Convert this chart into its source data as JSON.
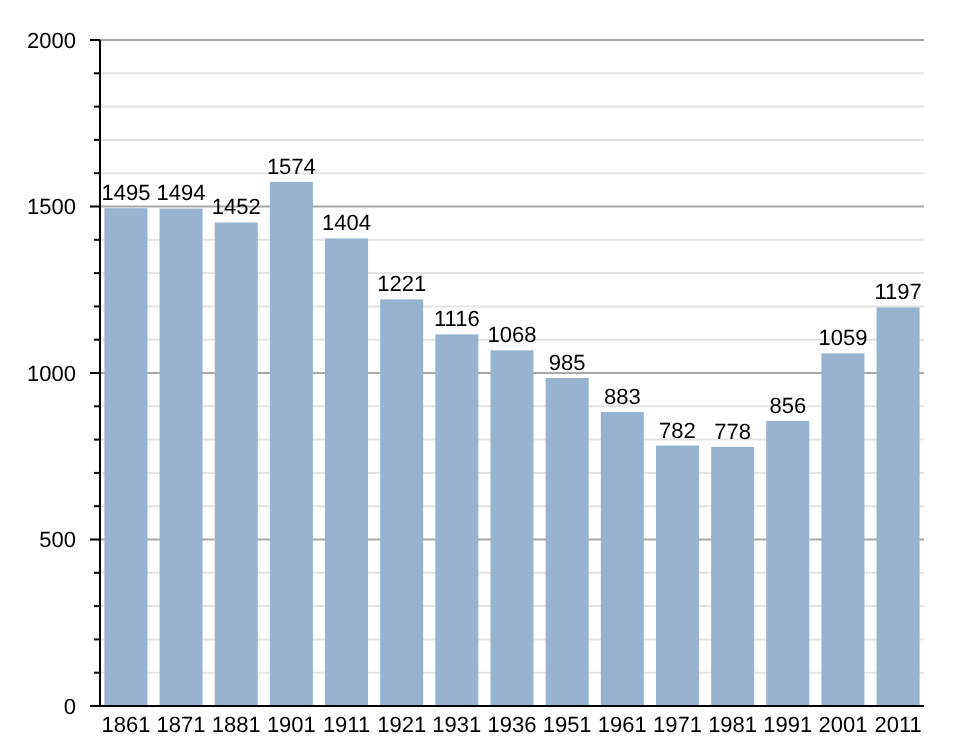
{
  "chart_data": {
    "type": "bar",
    "categories": [
      "1861",
      "1871",
      "1881",
      "1901",
      "1911",
      "1921",
      "1931",
      "1936",
      "1951",
      "1961",
      "1971",
      "1981",
      "1991",
      "2001",
      "2011"
    ],
    "values": [
      1495,
      1494,
      1452,
      1574,
      1404,
      1221,
      1116,
      1068,
      985,
      883,
      782,
      778,
      856,
      1059,
      1197
    ],
    "color": "#97b3cf",
    "data_labels": true,
    "grid": "y",
    "ylim": [
      0,
      2000
    ],
    "yticks": [
      0,
      {
        "value": 100,
        "label": null
      },
      {
        "value": 200,
        "label": null
      },
      {
        "value": 300,
        "label": null
      },
      {
        "value": 400,
        "label": null
      },
      500,
      {
        "value": 600,
        "label": null
      },
      {
        "value": 700,
        "label": null
      },
      {
        "value": 800,
        "label": null
      },
      {
        "value": 900,
        "label": null
      },
      1000,
      {
        "value": 1100,
        "label": null
      },
      {
        "value": 1200,
        "label": null
      },
      {
        "value": 1300,
        "label": null
      },
      {
        "value": 1400,
        "label": null
      },
      1500,
      {
        "value": 1600,
        "label": null
      },
      {
        "value": 1700,
        "label": null
      },
      {
        "value": 1800,
        "label": null
      },
      {
        "value": 1900,
        "label": null
      },
      2000
    ]
  }
}
